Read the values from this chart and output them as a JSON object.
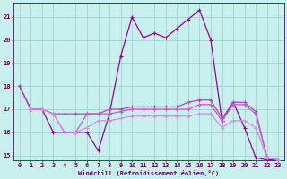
{
  "bg_color": "#c8f0ee",
  "line_colors": [
    "#990099",
    "#bb44bb",
    "#cc55cc",
    "#dd88dd"
  ],
  "grid_color": "#99cccc",
  "axis_color": "#660066",
  "xlabel": "Windchill (Refroidissement éolien,°C)",
  "xlim": [
    -0.5,
    23.5
  ],
  "ylim": [
    14.8,
    21.6
  ],
  "yticks": [
    15,
    16,
    17,
    18,
    19,
    20,
    21
  ],
  "xticks": [
    0,
    1,
    2,
    3,
    4,
    5,
    6,
    7,
    8,
    9,
    10,
    11,
    12,
    13,
    14,
    15,
    16,
    17,
    18,
    19,
    20,
    21,
    22,
    23
  ],
  "lines": [
    {
      "x": [
        0,
        1,
        2,
        3,
        4,
        5,
        6,
        7,
        8,
        9,
        10,
        11,
        12,
        13,
        14,
        15,
        16,
        17,
        18,
        19,
        20,
        21,
        22,
        23
      ],
      "y": [
        18,
        17,
        17,
        16,
        16,
        16,
        16,
        15.2,
        16.8,
        19.3,
        21.0,
        20.1,
        20.3,
        20.1,
        20.5,
        20.9,
        21.3,
        20.0,
        16.5,
        17.3,
        16.2,
        14.9,
        14.8,
        14.8
      ]
    },
    {
      "x": [
        0,
        1,
        2,
        3,
        4,
        5,
        6,
        7,
        8,
        9,
        10,
        11,
        12,
        13,
        14,
        15,
        16,
        17,
        18,
        19,
        20,
        21,
        22,
        23
      ],
      "y": [
        18,
        17,
        17,
        16.8,
        16.8,
        16.8,
        16.8,
        16.8,
        17.0,
        17.0,
        17.1,
        17.1,
        17.1,
        17.1,
        17.1,
        17.3,
        17.4,
        17.4,
        16.6,
        17.3,
        17.3,
        16.9,
        14.9,
        14.8
      ]
    },
    {
      "x": [
        1,
        2,
        3,
        4,
        5,
        6,
        7,
        8,
        9,
        10,
        11,
        12,
        13,
        14,
        15,
        16,
        17,
        18,
        19,
        20,
        21,
        22,
        23
      ],
      "y": [
        17,
        17,
        16.8,
        16,
        16,
        16.8,
        16.8,
        16.8,
        16.9,
        17.0,
        17.0,
        17.0,
        17.0,
        17.0,
        17.0,
        17.2,
        17.2,
        16.5,
        17.2,
        17.2,
        16.8,
        14.9,
        14.8
      ]
    },
    {
      "x": [
        1,
        2,
        3,
        4,
        5,
        6,
        7,
        8,
        9,
        10,
        11,
        12,
        13,
        14,
        15,
        16,
        17,
        18,
        19,
        20,
        21,
        22,
        23
      ],
      "y": [
        17,
        17,
        16.8,
        16,
        16,
        16.2,
        16.5,
        16.5,
        16.6,
        16.7,
        16.7,
        16.7,
        16.7,
        16.7,
        16.7,
        16.8,
        16.8,
        16.2,
        16.5,
        16.5,
        16.2,
        14.9,
        14.8
      ]
    }
  ]
}
